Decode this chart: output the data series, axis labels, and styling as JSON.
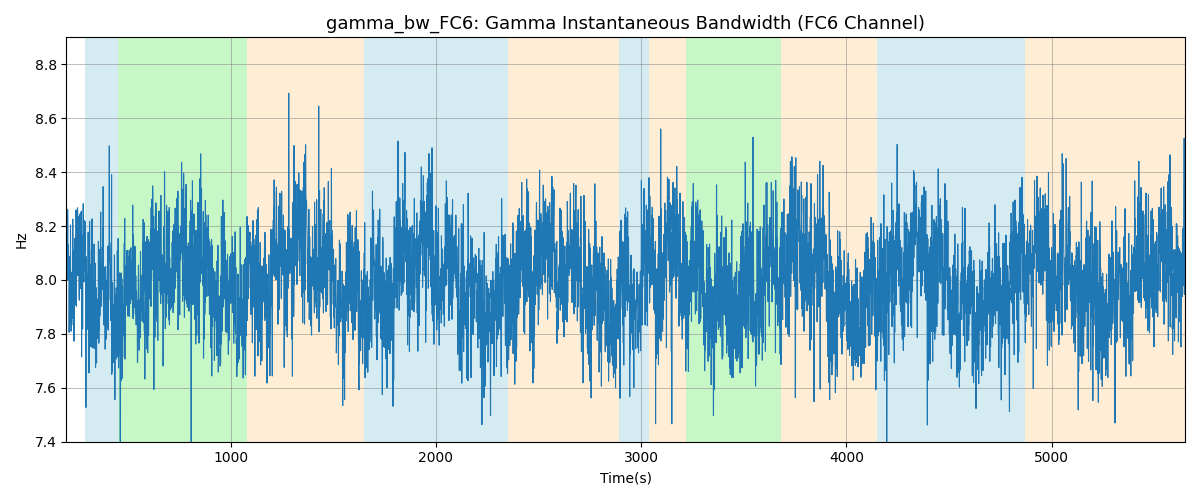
{
  "title": "gamma_bw_FC6: Gamma Instantaneous Bandwidth (FC6 Channel)",
  "xlabel": "Time(s)",
  "ylabel": "Hz",
  "ylim": [
    7.4,
    8.9
  ],
  "xlim": [
    200,
    5650
  ],
  "line_color": "#1f77b4",
  "line_width": 0.8,
  "background_regions": [
    {
      "xmin": 290,
      "xmax": 450,
      "color": "#add8e6",
      "alpha": 0.5
    },
    {
      "xmin": 450,
      "xmax": 1080,
      "color": "#90ee90",
      "alpha": 0.5
    },
    {
      "xmin": 1080,
      "xmax": 1650,
      "color": "#ffdead",
      "alpha": 0.5
    },
    {
      "xmin": 1650,
      "xmax": 1820,
      "color": "#add8e6",
      "alpha": 0.5
    },
    {
      "xmin": 1820,
      "xmax": 2350,
      "color": "#add8e6",
      "alpha": 0.5
    },
    {
      "xmin": 2350,
      "xmax": 2890,
      "color": "#ffdead",
      "alpha": 0.5
    },
    {
      "xmin": 2890,
      "xmax": 3040,
      "color": "#add8e6",
      "alpha": 0.5
    },
    {
      "xmin": 3040,
      "xmax": 3220,
      "color": "#ffdead",
      "alpha": 0.5
    },
    {
      "xmin": 3220,
      "xmax": 3680,
      "color": "#90ee90",
      "alpha": 0.5
    },
    {
      "xmin": 3680,
      "xmax": 4150,
      "color": "#ffdead",
      "alpha": 0.5
    },
    {
      "xmin": 4150,
      "xmax": 4870,
      "color": "#add8e6",
      "alpha": 0.5
    },
    {
      "xmin": 4870,
      "xmax": 5650,
      "color": "#ffdead",
      "alpha": 0.5
    }
  ],
  "seed": 42,
  "title_fontsize": 13,
  "xticks": [
    1000,
    2000,
    3000,
    4000,
    5000
  ],
  "yticks": [
    7.4,
    7.6,
    7.8,
    8.0,
    8.2,
    8.4,
    8.6,
    8.8
  ]
}
